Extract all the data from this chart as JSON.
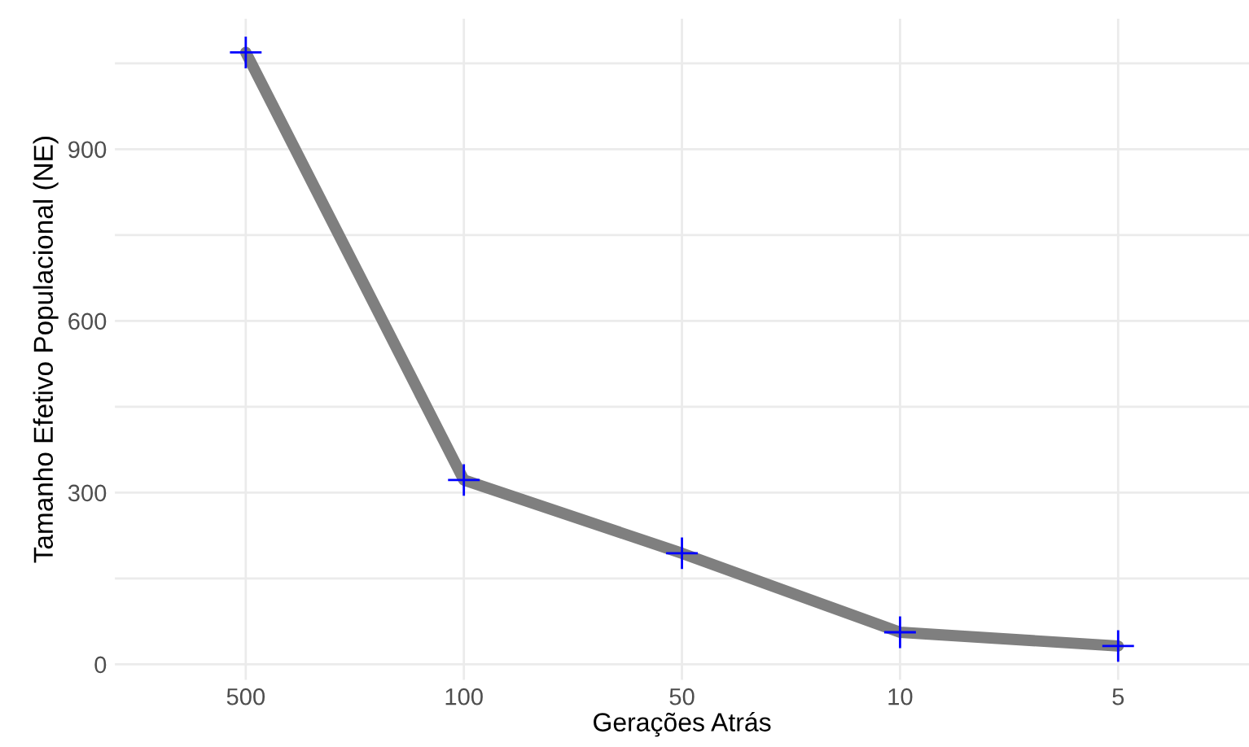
{
  "chart_data": {
    "type": "line",
    "xlabel": "Gerações Atrás",
    "ylabel": "Tamanho Efetivo Populacional (NE)",
    "categories": [
      "500",
      "100",
      "50",
      "10",
      "5"
    ],
    "series": [
      {
        "color": "#7f7f7f",
        "colors": [
          "#0000ff",
          "#0000ff",
          "#0000ff",
          "#0000ff",
          "#0000ff"
        ],
        "values": [
          1069,
          322,
          194,
          56,
          32
        ]
      }
    ],
    "ylim": [
      -27,
      1128
    ],
    "yticks": [
      0,
      {
        "value": 150,
        "label": null
      },
      300,
      {
        "value": 450,
        "label": null
      },
      600,
      {
        "value": 750,
        "label": null
      },
      900,
      {
        "value": 1050,
        "label": null
      }
    ],
    "grid": true,
    "marker": "cross",
    "line_style": "solid"
  }
}
